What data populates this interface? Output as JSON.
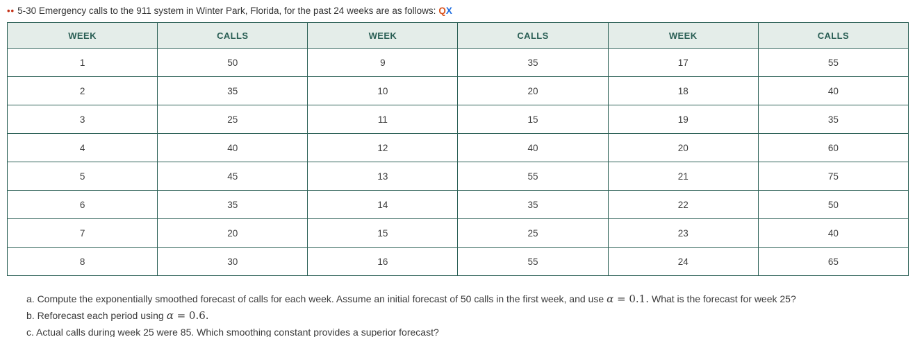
{
  "title": {
    "marker": "••",
    "text": "5-30 Emergency calls to the 911 system in Winter Park, Florida, for the past 24 weeks are as follows:",
    "link_q": "Q",
    "link_x": "X"
  },
  "table": {
    "headers": [
      "WEEK",
      "CALLS",
      "WEEK",
      "CALLS",
      "WEEK",
      "CALLS"
    ],
    "rows": [
      [
        "1",
        "50",
        "9",
        "35",
        "17",
        "55"
      ],
      [
        "2",
        "35",
        "10",
        "20",
        "18",
        "40"
      ],
      [
        "3",
        "25",
        "11",
        "15",
        "19",
        "35"
      ],
      [
        "4",
        "40",
        "12",
        "40",
        "20",
        "60"
      ],
      [
        "5",
        "45",
        "13",
        "55",
        "21",
        "75"
      ],
      [
        "6",
        "35",
        "14",
        "35",
        "22",
        "50"
      ],
      [
        "7",
        "20",
        "15",
        "25",
        "23",
        "40"
      ],
      [
        "8",
        "30",
        "16",
        "55",
        "24",
        "65"
      ]
    ]
  },
  "chart_data": {
    "type": "table",
    "title": "Emergency calls to the 911 system in Winter Park, Florida (past 24 weeks)",
    "categories": [
      "WEEK",
      "CALLS"
    ],
    "weeks": [
      1,
      2,
      3,
      4,
      5,
      6,
      7,
      8,
      9,
      10,
      11,
      12,
      13,
      14,
      15,
      16,
      17,
      18,
      19,
      20,
      21,
      22,
      23,
      24
    ],
    "calls": [
      50,
      35,
      25,
      40,
      45,
      35,
      20,
      30,
      35,
      20,
      15,
      40,
      55,
      35,
      25,
      55,
      55,
      40,
      35,
      60,
      75,
      50,
      40,
      65
    ]
  },
  "questions": [
    {
      "pre": "a. Compute the exponentially smoothed forecast of calls for each week. Assume an initial forecast of 50 calls in the first week, and use",
      "math_alpha": "α",
      "math_rest": " = 0.1.",
      "post": "What is the forecast for week 25?"
    },
    {
      "pre": "b. Reforecast each period using",
      "math_alpha": "α",
      "math_rest": " = 0.6.",
      "post": ""
    },
    {
      "text": "c. Actual calls during week 25 were 85. Which smoothing constant provides a superior forecast?"
    }
  ],
  "colors": {
    "border_green": "#2d6157",
    "header_bg": "#e4ede9",
    "header_text": "#2a5f55",
    "body_text": "#3c3c3c",
    "marker_red": "#c43117",
    "link_q_orange": "#d9531e",
    "link_x_blue": "#1f6de0"
  }
}
